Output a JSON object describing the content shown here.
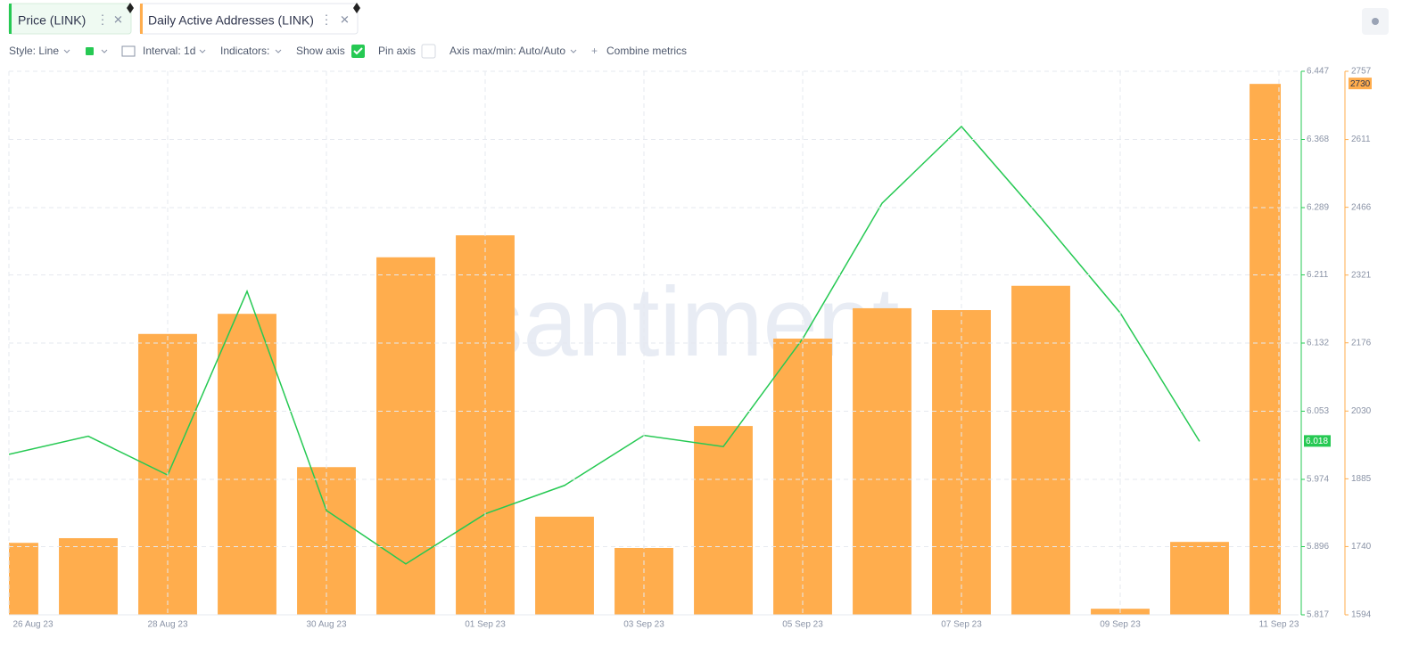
{
  "toolbar": {
    "style": "Style: Line",
    "interval": "Interval: 1d",
    "indicators": "Indicators:",
    "show_axis": "Show axis",
    "pin_axis": "Pin axis",
    "axis_range": "Axis max/min: Auto/Auto",
    "combine": "Combine metrics"
  },
  "watermark": "santiment",
  "chart_data": {
    "type": "combo",
    "categories": [
      "26 Aug 23",
      null,
      "28 Aug 23",
      null,
      "30 Aug 23",
      null,
      "01 Sep 23",
      null,
      "03 Sep 23",
      null,
      "05 Sep 23",
      null,
      "07 Sep 23",
      null,
      "09 Sep 23",
      null,
      "11 Sep 23"
    ],
    "series": [
      {
        "name": "Price (LINK)",
        "type": "line",
        "color": "#26c953",
        "values": [
          6.003,
          6.024,
          5.979,
          6.192,
          5.938,
          5.876,
          5.934,
          5.967,
          6.025,
          6.012,
          6.137,
          6.294,
          6.383,
          6.277,
          6.167,
          6.018,
          null
        ]
      },
      {
        "name": "Daily Active Addresses (LINK)",
        "type": "bar",
        "axis": "y2",
        "color": "#ffad4d",
        "values": [
          1748,
          1758,
          2195,
          2238,
          1910,
          2359,
          2406,
          1804,
          1737,
          1998,
          2185,
          2250,
          2246,
          2298,
          1607,
          1750,
          2730
        ]
      }
    ],
    "ylim": [
      5.817,
      6.447
    ],
    "yticks": [
      5.817,
      5.896,
      5.974,
      6.053,
      6.132,
      6.211,
      6.289,
      6.368,
      6.447
    ],
    "y2lim": [
      1594,
      2757
    ],
    "y2ticks": [
      1594,
      1740,
      1885,
      2030,
      2176,
      2321,
      2466,
      2611,
      2757
    ],
    "grid": true
  }
}
